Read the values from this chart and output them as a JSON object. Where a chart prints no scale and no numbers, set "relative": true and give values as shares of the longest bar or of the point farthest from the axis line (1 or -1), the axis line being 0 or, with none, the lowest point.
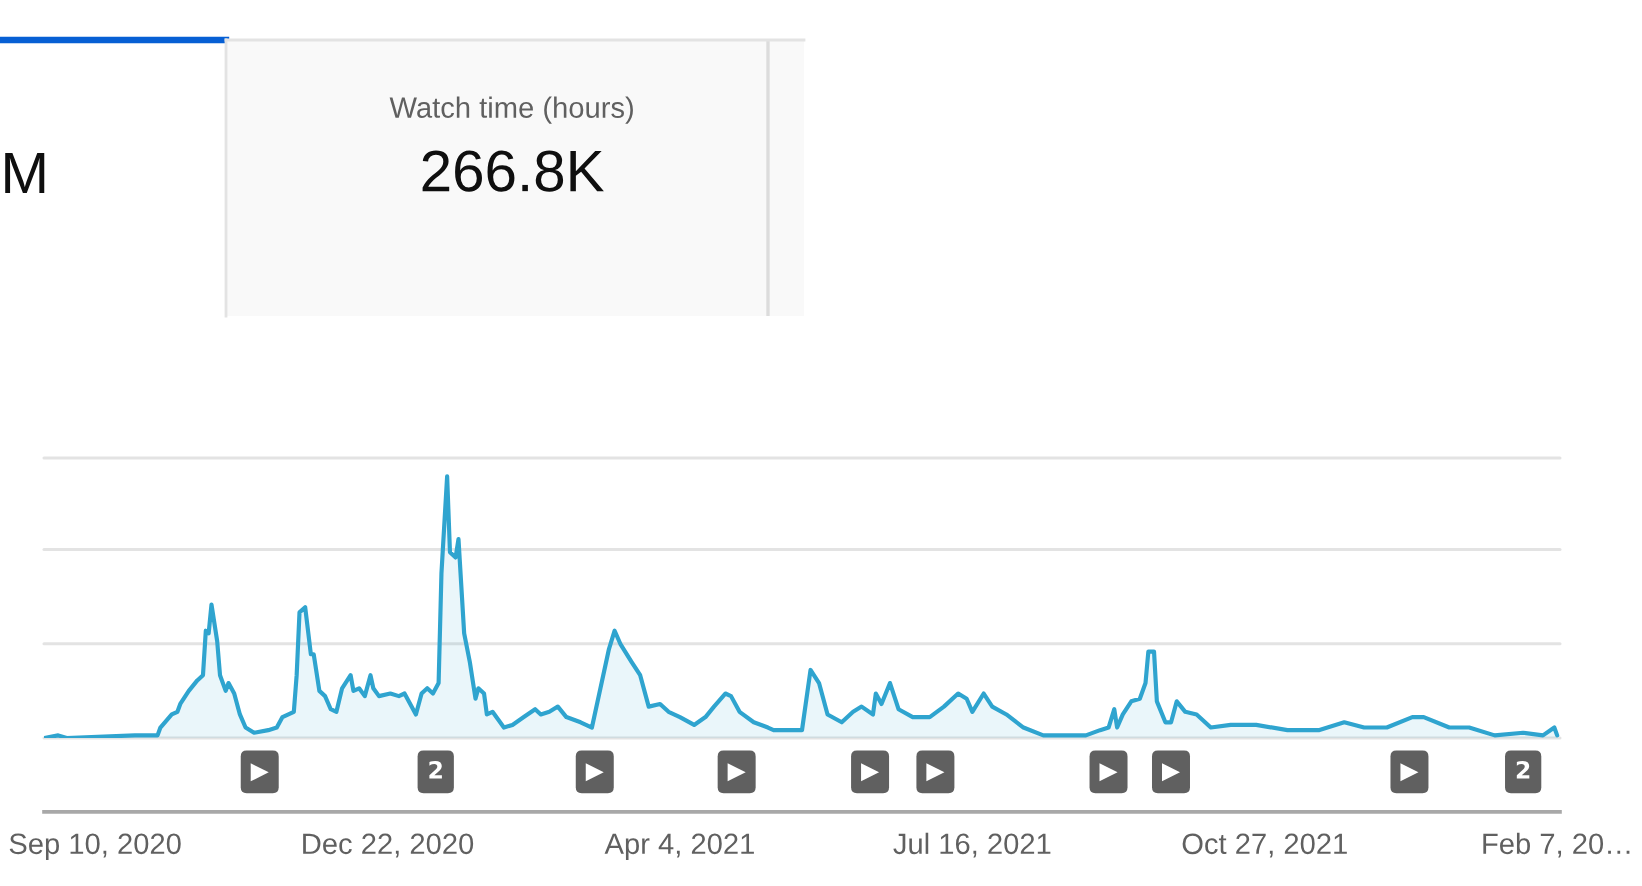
{
  "chart_data": [
    {
      "type": "other",
      "annotations": [
        "M"
      ]
    },
    {
      "type": "other",
      "title": "Watch time (hours)",
      "annotations": [
        "266.8K"
      ]
    },
    {
      "type": "area",
      "relative": true,
      "color": "#2fa4cf",
      "xlim": [
        "2020-08-23",
        "2022-02-08"
      ],
      "xticks": [
        {
          "value": "2020-09-10",
          "label": "Sep 10, 2020"
        },
        {
          "value": "2020-12-22",
          "label": "Dec 22, 2020"
        },
        {
          "value": "2021-04-04",
          "label": "Apr 4, 2021"
        },
        {
          "value": "2021-07-16",
          "label": "Jul 16, 2021"
        },
        {
          "value": "2021-10-27",
          "label": "Oct 27, 2021"
        },
        {
          "value": "2022-02-07",
          "label": "Feb 7, 20…"
        }
      ],
      "ref_lines": [
        {
          "axis": "y",
          "value": 0,
          "color": "#e3e3e3"
        },
        {
          "axis": "y",
          "value": 0.36,
          "color": "#e3e3e3"
        },
        {
          "axis": "y",
          "value": 0.72,
          "color": "#e3e3e3"
        },
        {
          "axis": "y",
          "value": 1.07,
          "color": "#e3e3e3"
        }
      ],
      "x": [
        "2020-08-23",
        "2020-08-28",
        "2020-08-31",
        "2020-09-24",
        "2020-10-02",
        "2020-10-03",
        "2020-10-07",
        "2020-10-09",
        "2020-10-10",
        "2020-10-13",
        "2020-10-16",
        "2020-10-18",
        "2020-10-19",
        "2020-10-20",
        "2020-10-21",
        "2020-10-23",
        "2020-10-24",
        "2020-10-26",
        "2020-10-27",
        "2020-10-29",
        "2020-10-31",
        "2020-11-02",
        "2020-11-05",
        "2020-11-10",
        "2020-11-13",
        "2020-11-15",
        "2020-11-19",
        "2020-11-20",
        "2020-11-21",
        "2020-11-23",
        "2020-11-25",
        "2020-11-26",
        "2020-11-28",
        "2020-11-30",
        "2020-12-02",
        "2020-12-04",
        "2020-12-06",
        "2020-12-09",
        "2020-12-10",
        "2020-12-12",
        "2020-12-14",
        "2020-12-16",
        "2020-12-17",
        "2020-12-19",
        "2020-12-23",
        "2020-12-26",
        "2020-12-28",
        "2021-01-01",
        "2021-01-03",
        "2021-01-05",
        "2021-01-07",
        "2021-01-09",
        "2021-01-10",
        "2021-01-12",
        "2021-01-13",
        "2021-01-15",
        "2021-01-16",
        "2021-01-18",
        "2021-01-20",
        "2021-01-22",
        "2021-01-23",
        "2021-01-25",
        "2021-01-26",
        "2021-01-28",
        "2021-02-01",
        "2021-02-04",
        "2021-02-08",
        "2021-02-12",
        "2021-02-14",
        "2021-02-17",
        "2021-02-20",
        "2021-02-23",
        "2021-02-28",
        "2021-03-04",
        "2021-03-07",
        "2021-03-10",
        "2021-03-12",
        "2021-03-14",
        "2021-03-18",
        "2021-03-21",
        "2021-03-24",
        "2021-03-28",
        "2021-03-31",
        "2021-04-04",
        "2021-04-09",
        "2021-04-13",
        "2021-04-16",
        "2021-04-20",
        "2021-04-22",
        "2021-04-25",
        "2021-04-30",
        "2021-05-05",
        "2021-05-07",
        "2021-05-17",
        "2021-05-20",
        "2021-05-23",
        "2021-05-26",
        "2021-05-31",
        "2021-06-04",
        "2021-06-07",
        "2021-06-11",
        "2021-06-12",
        "2021-06-14",
        "2021-06-17",
        "2021-06-20",
        "2021-06-25",
        "2021-07-01",
        "2021-07-06",
        "2021-07-11",
        "2021-07-14",
        "2021-07-16",
        "2021-07-20",
        "2021-07-23",
        "2021-07-28",
        "2021-08-03",
        "2021-08-10",
        "2021-08-25",
        "2021-08-30",
        "2021-09-02",
        "2021-09-04",
        "2021-09-05",
        "2021-09-07",
        "2021-09-10",
        "2021-09-13",
        "2021-09-15",
        "2021-09-16",
        "2021-09-18",
        "2021-09-19",
        "2021-09-22",
        "2021-09-24",
        "2021-09-26",
        "2021-09-29",
        "2021-10-03",
        "2021-10-08",
        "2021-10-15",
        "2021-10-24",
        "2021-11-04",
        "2021-11-15",
        "2021-11-24",
        "2021-12-01",
        "2021-12-09",
        "2021-12-18",
        "2021-12-22",
        "2021-12-31",
        "2022-01-07",
        "2022-01-16",
        "2022-01-26",
        "2022-02-02",
        "2022-02-06",
        "2022-02-07"
      ],
      "values": [
        0,
        0.01,
        0,
        0.01,
        0.01,
        0.04,
        0.09,
        0.1,
        0.13,
        0.18,
        0.22,
        0.24,
        0.41,
        0.4,
        0.51,
        0.37,
        0.24,
        0.18,
        0.21,
        0.17,
        0.09,
        0.04,
        0.02,
        0.03,
        0.04,
        0.08,
        0.1,
        0.24,
        0.48,
        0.5,
        0.32,
        0.32,
        0.18,
        0.16,
        0.11,
        0.1,
        0.19,
        0.24,
        0.18,
        0.19,
        0.16,
        0.24,
        0.19,
        0.16,
        0.17,
        0.16,
        0.17,
        0.09,
        0.17,
        0.19,
        0.17,
        0.21,
        0.63,
        1,
        0.71,
        0.69,
        0.76,
        0.4,
        0.29,
        0.15,
        0.19,
        0.17,
        0.09,
        0.1,
        0.04,
        0.05,
        0.08,
        0.11,
        0.09,
        0.1,
        0.12,
        0.08,
        0.06,
        0.04,
        0.19,
        0.34,
        0.41,
        0.36,
        0.29,
        0.24,
        0.12,
        0.13,
        0.1,
        0.08,
        0.05,
        0.08,
        0.12,
        0.17,
        0.16,
        0.1,
        0.06,
        0.04,
        0.03,
        0.03,
        0.26,
        0.21,
        0.09,
        0.06,
        0.1,
        0.12,
        0.09,
        0.17,
        0.13,
        0.21,
        0.11,
        0.08,
        0.08,
        0.12,
        0.17,
        0.15,
        0.1,
        0.17,
        0.12,
        0.09,
        0.04,
        0.01,
        0.01,
        0.03,
        0.04,
        0.11,
        0.04,
        0.09,
        0.14,
        0.15,
        0.21,
        0.33,
        0.33,
        0.14,
        0.06,
        0.06,
        0.14,
        0.1,
        0.09,
        0.04,
        0.05,
        0.05,
        0.03,
        0.03,
        0.06,
        0.04,
        0.04,
        0.08,
        0.08,
        0.04,
        0.04,
        0.01,
        0.02,
        0.01,
        0.04,
        0.01
      ],
      "annotations": [
        "▶",
        "2",
        "▶",
        "▶",
        "▶",
        "▶",
        "▶",
        "▶",
        "▶",
        "2"
      ]
    }
  ]
}
